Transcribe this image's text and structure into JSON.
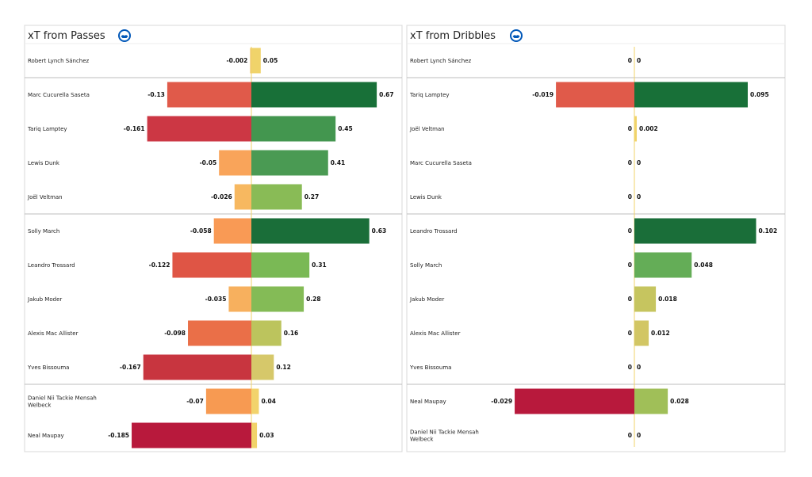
{
  "badge_icon": "brighton-crest-icon",
  "chart_data": [
    {
      "type": "bar",
      "orientation": "horizontal-diverging",
      "title": "xT from Passes",
      "groups": [
        1,
        4,
        5,
        2
      ],
      "categories": [
        "Robert Lynch Sánchez",
        "Marc Cucurella Saseta",
        "Tariq Lamptey",
        "Lewis Dunk",
        "Joël Veltman",
        "Solly March",
        "Leandro Trossard",
        "Jakub Moder",
        "Alexis Mac Allister",
        "Yves Bissouma",
        "Daniel Nii Tackie Mensah Welbeck",
        "Neal Maupay"
      ],
      "series": [
        {
          "values": [
            -0.002,
            -0.13,
            -0.161,
            -0.05,
            -0.026,
            -0.058,
            -0.122,
            -0.035,
            -0.098,
            -0.167,
            -0.07,
            -0.185
          ]
        },
        {
          "values": [
            0.05,
            0.67,
            0.45,
            0.41,
            0.27,
            0.63,
            0.31,
            0.28,
            0.16,
            0.12,
            0.04,
            0.03
          ]
        }
      ],
      "neg_labels": [
        "-0.002",
        "-0.13",
        "-0.161",
        "-0.05",
        "-0.026",
        "-0.058",
        "-0.122",
        "-0.035",
        "-0.098",
        "-0.167",
        "-0.07",
        "-0.185"
      ],
      "pos_labels": [
        "0.05",
        "0.67",
        "0.45",
        "0.41",
        "0.27",
        "0.63",
        "0.31",
        "0.28",
        "0.16",
        "0.12",
        "0.04",
        "0.03"
      ],
      "neg_colors": [
        "#f0c96a",
        "#e05a4a",
        "#cc3744",
        "#f9a45a",
        "#f7b860",
        "#f99a55",
        "#df5545",
        "#f7b05e",
        "#ea6f48",
        "#c8353f",
        "#f79a52",
        "#b8193c"
      ],
      "pos_colors": [
        "#f0d36a",
        "#187038",
        "#43964f",
        "#4a9a53",
        "#89bb56",
        "#1a6e39",
        "#7ab955",
        "#84bb56",
        "#bcc45d",
        "#d6c86a",
        "#f2d36b",
        "#f1d36a"
      ],
      "grid": false
    },
    {
      "type": "bar",
      "orientation": "horizontal-diverging",
      "title": "xT from Dribbles",
      "groups": [
        1,
        4,
        5,
        2
      ],
      "categories": [
        "Robert Lynch Sánchez",
        "Tariq Lamptey",
        "Joël Veltman",
        "Marc Cucurella Saseta",
        "Lewis Dunk",
        "Leandro Trossard",
        "Solly March",
        "Jakub Moder",
        "Alexis Mac Allister",
        "Yves Bissouma",
        "Neal Maupay",
        "Daniel Nii Tackie Mensah Welbeck"
      ],
      "series": [
        {
          "values": [
            0,
            -0.019,
            0,
            0,
            0,
            0,
            0,
            0,
            0,
            0,
            -0.029,
            0
          ]
        },
        {
          "values": [
            0,
            0.095,
            0.002,
            0,
            0,
            0.102,
            0.048,
            0.018,
            0.012,
            0,
            0.028,
            0
          ]
        }
      ],
      "neg_labels": [
        "0",
        "-0.019",
        "0",
        "0",
        "0",
        "0",
        "0",
        "0",
        "0",
        "0",
        "-0.029",
        "0"
      ],
      "pos_labels": [
        "0",
        "0.095",
        "0.002",
        "0",
        "0",
        "0.102",
        "0.048",
        "0.018",
        "0.012",
        "0",
        "0.028",
        "0"
      ],
      "neg_colors": [
        "#f0d36a",
        "#e05a4a",
        "#f0d36a",
        "#f0d36a",
        "#f0d36a",
        "#f0d36a",
        "#f0d36a",
        "#f0d36a",
        "#f0d36a",
        "#f0d36a",
        "#b8193c",
        "#f0d36a"
      ],
      "pos_colors": [
        "#f0d36a",
        "#187038",
        "#f0d36a",
        "#f0d36a",
        "#f0d36a",
        "#1a6e39",
        "#64ad57",
        "#c6c55f",
        "#d2c664",
        "#f0d36a",
        "#a0bf58",
        "#f0d36a"
      ],
      "grid": false
    }
  ]
}
